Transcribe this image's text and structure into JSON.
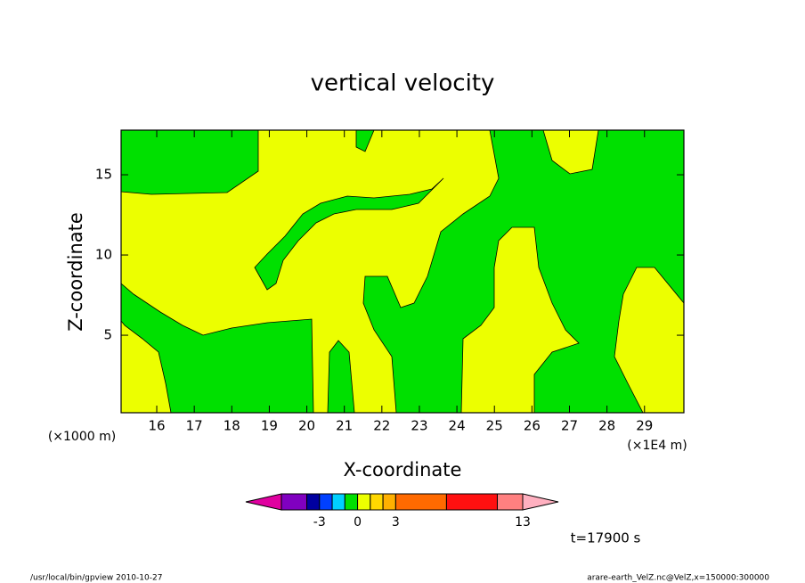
{
  "chart_data": {
    "type": "contour",
    "title": "vertical velocity",
    "xlabel": "X-coordinate",
    "ylabel": "Z-coordinate",
    "x_unit_left": "(×1000 m)",
    "x_unit_right": "(×1E4 m)",
    "time_label": "t=17900 s",
    "xlim": [
      15.05,
      30.05
    ],
    "xticks": [
      16,
      17,
      18,
      19,
      20,
      21,
      22,
      23,
      24,
      25,
      26,
      27,
      28,
      29
    ],
    "ylim": [
      0.17,
      17.78
    ],
    "yticks": [
      5,
      10,
      15
    ],
    "colorbar": {
      "levels": [
        -6,
        -4,
        -3,
        -2,
        -1,
        0,
        1,
        2,
        3,
        7,
        11,
        13
      ],
      "colors": [
        "#e000a0",
        "#8000c0",
        "#0000a0",
        "#0040ff",
        "#00d0ff",
        "#00e000",
        "#ecff00",
        "#ffd800",
        "#ffb000",
        "#ff6a00",
        "#ff1010",
        "#ff8080",
        "#ffb0c0"
      ],
      "ticks": [
        -3,
        0,
        3,
        13
      ]
    }
  },
  "footer": {
    "left": "/usr/local/bin/gpview  2010-10-27",
    "right": "arare-earth_VelZ.nc@VelZ,x=150000:300000"
  }
}
